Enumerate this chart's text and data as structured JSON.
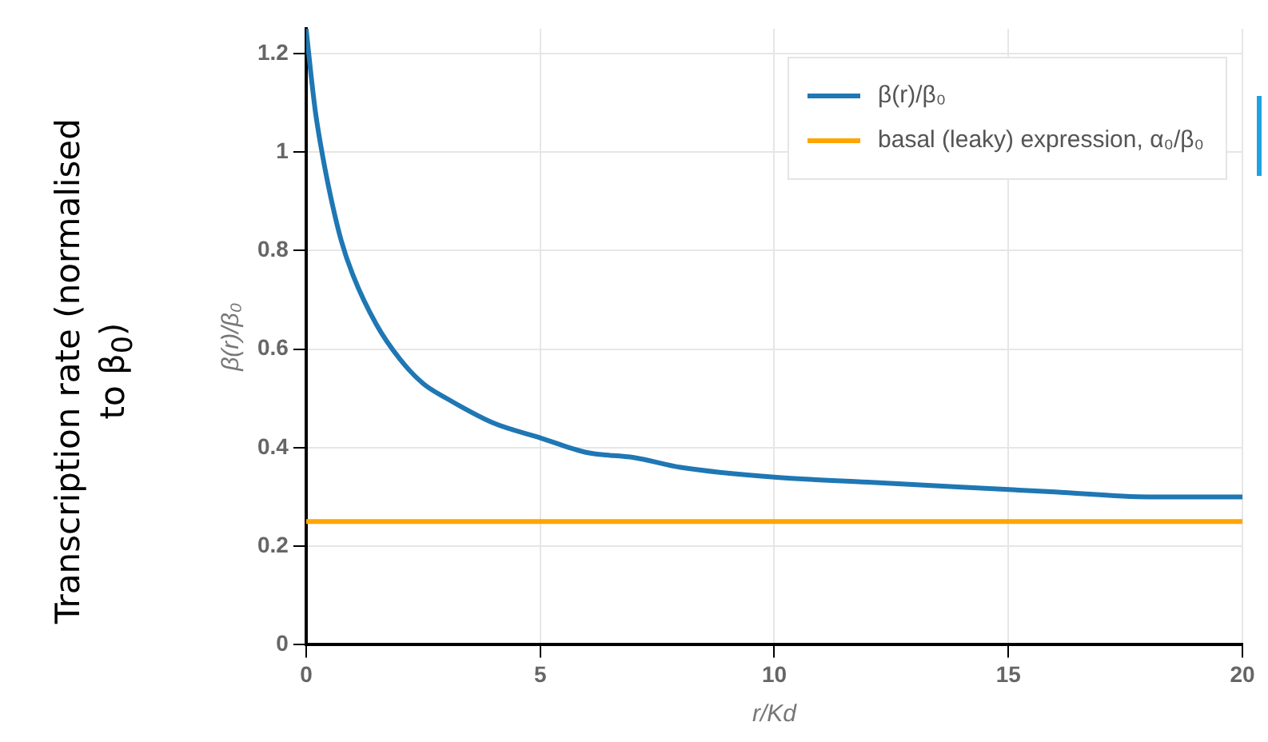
{
  "chart_data": {
    "type": "line",
    "ylabel": "β(r)/β₀",
    "xlabel": "r/Kd",
    "annotations": [
      "Transcription rate (normalised to β$_{0}$)"
    ],
    "series": [
      {
        "name": "β(r)/β₀",
        "color": "#1f77b4",
        "x": [
          0,
          0.1,
          0.2,
          0.3,
          0.5,
          0.75,
          1,
          1.5,
          2,
          2.5,
          3,
          4,
          5,
          6,
          7,
          8,
          10,
          12,
          14,
          16,
          18,
          20
        ],
        "values": [
          1.25,
          1.16,
          1.08,
          1.02,
          0.92,
          0.82,
          0.75,
          0.65,
          0.58,
          0.53,
          0.5,
          0.45,
          0.42,
          0.39,
          0.38,
          0.36,
          0.34,
          0.33,
          0.32,
          0.31,
          0.3,
          0.3
        ]
      },
      {
        "name": "basal (leaky) expression, α₀/β₀",
        "color": "#ffa500",
        "x": [
          0,
          20
        ],
        "values": [
          0.25,
          0.25
        ]
      }
    ],
    "xlim": [
      0,
      20
    ],
    "ylim": [
      0,
      1.25
    ],
    "xticks": [
      0,
      5,
      10,
      15,
      20
    ],
    "yticks": [
      0,
      0.2,
      0.4,
      0.6,
      0.8,
      1,
      1.2
    ],
    "grid": true,
    "legend": "top right",
    "marker": "none",
    "line_style": "solid"
  }
}
